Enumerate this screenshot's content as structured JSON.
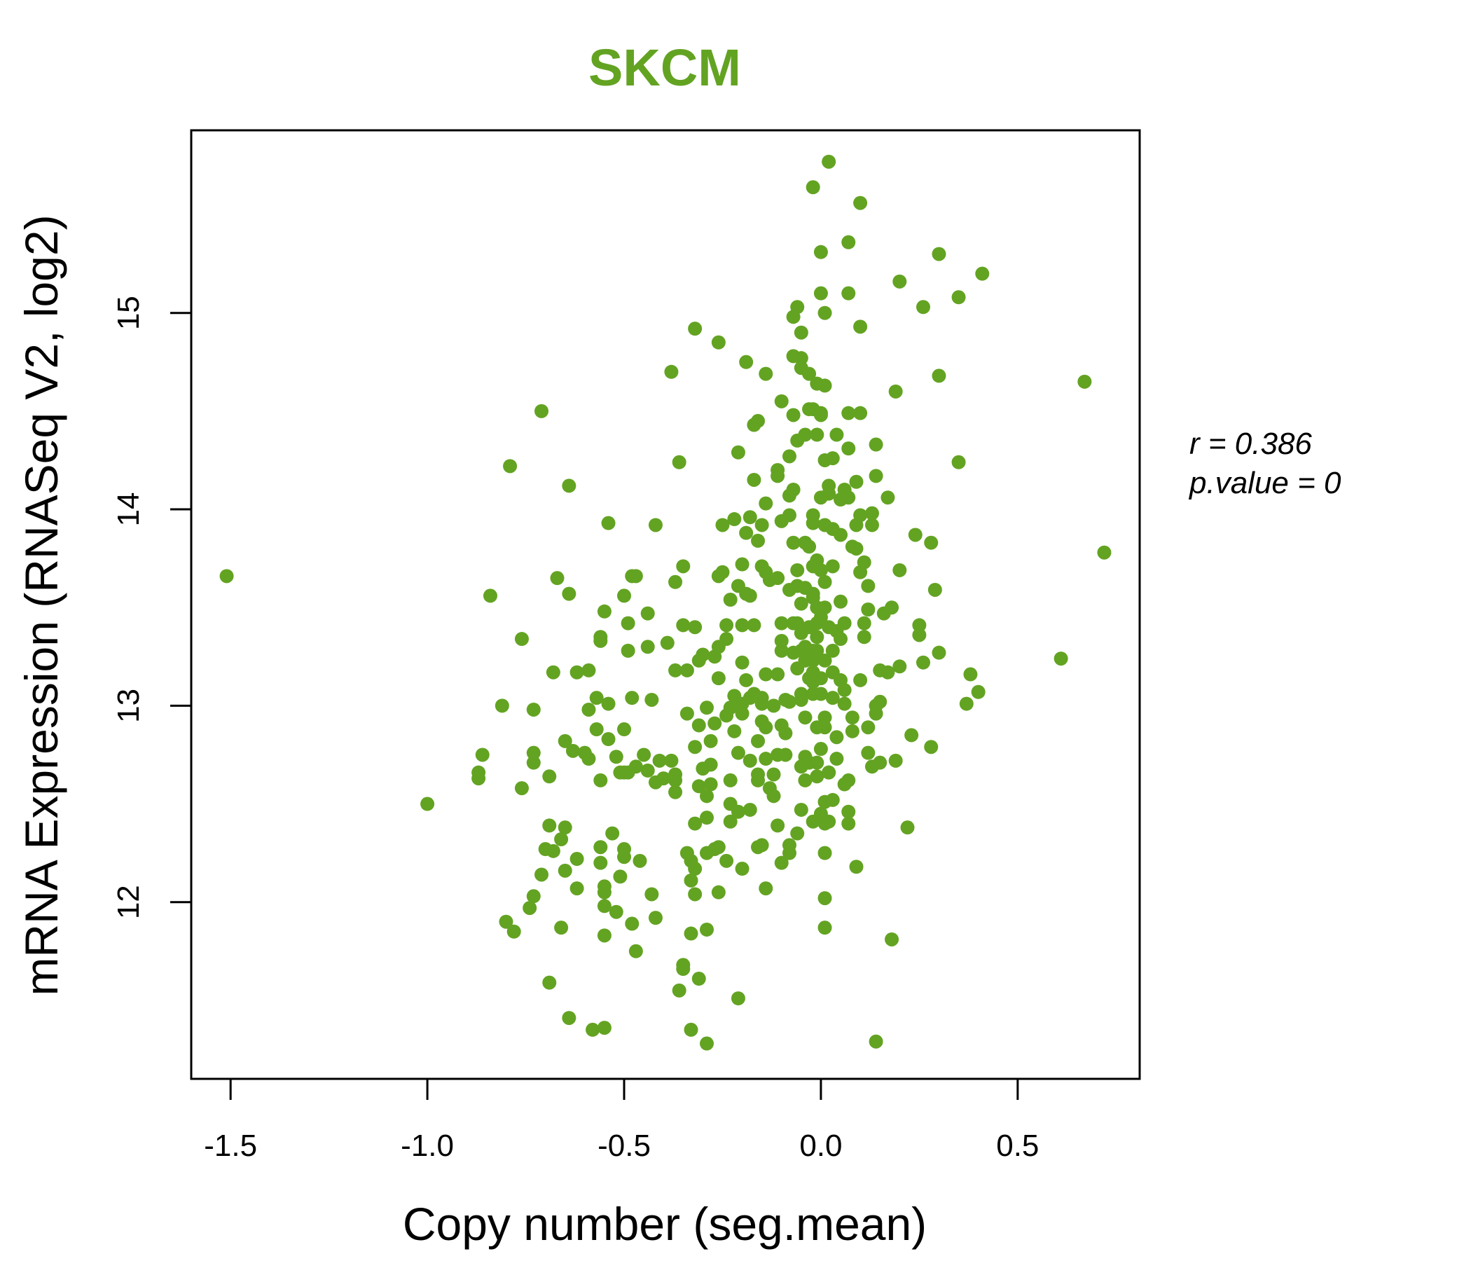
{
  "chart_data": {
    "type": "scatter",
    "title": "SKCM",
    "xlabel": "Copy number (seg.mean)",
    "ylabel": "mRNA Expression (RNASeq V2, log2)",
    "xlim": [
      -1.6,
      0.81
    ],
    "ylim": [
      11.1,
      15.93
    ],
    "xticks": [
      -1.5,
      -1.0,
      -0.5,
      0.0,
      0.5
    ],
    "xtick_labels": [
      "-1.5",
      "-1.0",
      "-0.5",
      "0.0",
      "0.5"
    ],
    "yticks": [
      12,
      13,
      14,
      15
    ],
    "ytick_labels": [
      "12",
      "13",
      "14",
      "15"
    ],
    "grid": false,
    "annotation": {
      "r": "r = 0.386",
      "p": "p.value = 0"
    },
    "colors": {
      "points": "#63a322",
      "title": "#63a322"
    },
    "points": [
      [
        -1.51,
        13.66
      ],
      [
        -1.0,
        12.5
      ],
      [
        -0.87,
        12.66
      ],
      [
        -0.87,
        12.63
      ],
      [
        -0.86,
        12.75
      ],
      [
        -0.84,
        13.56
      ],
      [
        -0.81,
        13.0
      ],
      [
        -0.79,
        14.22
      ],
      [
        -0.8,
        11.9
      ],
      [
        -0.78,
        11.85
      ],
      [
        -0.76,
        13.34
      ],
      [
        -0.76,
        12.58
      ],
      [
        -0.73,
        12.98
      ],
      [
        -0.73,
        12.76
      ],
      [
        -0.73,
        12.71
      ],
      [
        -0.74,
        11.97
      ],
      [
        -0.73,
        12.03
      ],
      [
        -0.71,
        14.5
      ],
      [
        -0.71,
        12.14
      ],
      [
        -0.7,
        12.27
      ],
      [
        -0.68,
        12.26
      ],
      [
        -0.69,
        12.64
      ],
      [
        -0.69,
        12.39
      ],
      [
        -0.68,
        13.17
      ],
      [
        -0.69,
        11.59
      ],
      [
        -0.67,
        13.65
      ],
      [
        -0.66,
        12.32
      ],
      [
        -0.65,
        12.38
      ],
      [
        -0.66,
        11.87
      ],
      [
        -0.65,
        12.82
      ],
      [
        -0.64,
        14.12
      ],
      [
        -0.64,
        13.57
      ],
      [
        -0.65,
        12.16
      ],
      [
        -0.64,
        11.41
      ],
      [
        -0.63,
        12.77
      ],
      [
        -0.62,
        12.22
      ],
      [
        -0.62,
        13.17
      ],
      [
        -0.62,
        12.07
      ],
      [
        -0.6,
        12.76
      ],
      [
        -0.59,
        12.73
      ],
      [
        -0.59,
        13.18
      ],
      [
        -0.59,
        12.98
      ],
      [
        -0.58,
        11.35
      ],
      [
        -0.57,
        13.04
      ],
      [
        -0.57,
        12.88
      ],
      [
        -0.56,
        13.33
      ],
      [
        -0.56,
        13.35
      ],
      [
        -0.56,
        12.28
      ],
      [
        -0.56,
        12.2
      ],
      [
        -0.56,
        12.62
      ],
      [
        -0.55,
        12.08
      ],
      [
        -0.55,
        11.98
      ],
      [
        -0.55,
        12.05
      ],
      [
        -0.55,
        11.36
      ],
      [
        -0.55,
        11.83
      ],
      [
        -0.55,
        13.48
      ],
      [
        -0.54,
        12.83
      ],
      [
        -0.54,
        13.93
      ],
      [
        -0.54,
        13.01
      ],
      [
        -0.53,
        12.35
      ],
      [
        -0.52,
        12.74
      ],
      [
        -0.52,
        11.95
      ],
      [
        -0.51,
        12.66
      ],
      [
        -0.5,
        12.66
      ],
      [
        -0.5,
        12.27
      ],
      [
        -0.5,
        12.23
      ],
      [
        -0.5,
        13.56
      ],
      [
        -0.51,
        12.13
      ],
      [
        -0.5,
        12.88
      ],
      [
        -0.49,
        13.42
      ],
      [
        -0.49,
        13.28
      ],
      [
        -0.49,
        12.66
      ],
      [
        -0.47,
        12.69
      ],
      [
        -0.48,
        11.89
      ],
      [
        -0.48,
        13.66
      ],
      [
        -0.47,
        13.66
      ],
      [
        -0.48,
        13.04
      ],
      [
        -0.47,
        11.75
      ],
      [
        -0.46,
        12.21
      ],
      [
        -0.45,
        12.75
      ],
      [
        -0.44,
        13.3
      ],
      [
        -0.44,
        13.47
      ],
      [
        -0.44,
        12.67
      ],
      [
        -0.43,
        13.03
      ],
      [
        -0.43,
        12.04
      ],
      [
        -0.42,
        12.61
      ],
      [
        -0.42,
        13.92
      ],
      [
        -0.42,
        11.92
      ],
      [
        -0.41,
        12.72
      ],
      [
        -0.4,
        12.63
      ],
      [
        -0.39,
        13.32
      ],
      [
        -0.38,
        14.7
      ],
      [
        -0.38,
        12.72
      ],
      [
        -0.37,
        12.65
      ],
      [
        -0.37,
        13.63
      ],
      [
        -0.37,
        13.18
      ],
      [
        -0.37,
        12.56
      ],
      [
        -0.37,
        12.62
      ],
      [
        -0.36,
        14.24
      ],
      [
        -0.36,
        11.55
      ],
      [
        -0.35,
        11.68
      ],
      [
        -0.35,
        11.66
      ],
      [
        -0.35,
        13.41
      ],
      [
        -0.35,
        13.71
      ],
      [
        -0.34,
        12.96
      ],
      [
        -0.34,
        13.18
      ],
      [
        -0.34,
        12.25
      ],
      [
        -0.33,
        12.21
      ],
      [
        -0.33,
        11.35
      ],
      [
        -0.33,
        11.84
      ],
      [
        -0.33,
        12.11
      ],
      [
        -0.32,
        12.17
      ],
      [
        -0.32,
        12.04
      ],
      [
        -0.32,
        12.79
      ],
      [
        -0.32,
        12.4
      ],
      [
        -0.32,
        14.92
      ],
      [
        -0.32,
        13.4
      ],
      [
        -0.31,
        13.23
      ],
      [
        -0.3,
        13.26
      ],
      [
        -0.31,
        12.59
      ],
      [
        -0.31,
        11.61
      ],
      [
        -0.31,
        12.9
      ],
      [
        -0.3,
        12.68
      ],
      [
        -0.29,
        12.54
      ],
      [
        -0.29,
        12.43
      ],
      [
        -0.29,
        11.86
      ],
      [
        -0.29,
        11.28
      ],
      [
        -0.29,
        12.25
      ],
      [
        -0.29,
        12.99
      ],
      [
        -0.28,
        12.7
      ],
      [
        -0.28,
        12.6
      ],
      [
        -0.28,
        12.82
      ],
      [
        -0.27,
        12.91
      ],
      [
        -0.27,
        13.25
      ],
      [
        -0.26,
        13.3
      ],
      [
        -0.27,
        12.27
      ],
      [
        -0.26,
        12.28
      ],
      [
        -0.26,
        13.14
      ],
      [
        -0.26,
        12.05
      ],
      [
        -0.26,
        13.66
      ],
      [
        -0.26,
        14.85
      ],
      [
        -0.25,
        13.92
      ],
      [
        -0.25,
        13.68
      ],
      [
        -0.24,
        13.41
      ],
      [
        -0.24,
        12.95
      ],
      [
        -0.24,
        12.21
      ],
      [
        -0.24,
        13.34
      ],
      [
        -0.23,
        12.62
      ],
      [
        -0.23,
        12.99
      ],
      [
        -0.22,
        13.05
      ],
      [
        -0.23,
        12.5
      ],
      [
        -0.23,
        12.41
      ],
      [
        -0.23,
        13.54
      ],
      [
        -0.22,
        13.95
      ],
      [
        -0.22,
        12.87
      ],
      [
        -0.21,
        12.46
      ],
      [
        -0.21,
        13.61
      ],
      [
        -0.21,
        14.29
      ],
      [
        -0.21,
        12.76
      ],
      [
        -0.21,
        11.51
      ],
      [
        -0.2,
        13.01
      ],
      [
        -0.2,
        12.96
      ],
      [
        -0.2,
        13.41
      ],
      [
        -0.2,
        13.22
      ],
      [
        -0.2,
        12.17
      ],
      [
        -0.2,
        13.72
      ],
      [
        -0.19,
        13.88
      ],
      [
        -0.19,
        13.57
      ],
      [
        -0.19,
        14.75
      ],
      [
        -0.19,
        13.13
      ],
      [
        -0.18,
        13.56
      ],
      [
        -0.18,
        12.72
      ],
      [
        -0.18,
        12.47
      ],
      [
        -0.18,
        13.04
      ],
      [
        -0.18,
        13.96
      ],
      [
        -0.17,
        14.15
      ],
      [
        -0.17,
        14.43
      ],
      [
        -0.17,
        13.06
      ],
      [
        -0.17,
        13.41
      ],
      [
        -0.16,
        12.62
      ],
      [
        -0.16,
        12.65
      ],
      [
        -0.16,
        12.82
      ],
      [
        -0.16,
        14.45
      ],
      [
        -0.16,
        12.28
      ],
      [
        -0.15,
        12.29
      ],
      [
        -0.16,
        13.84
      ],
      [
        -0.15,
        13.92
      ],
      [
        -0.15,
        13.71
      ],
      [
        -0.15,
        12.92
      ],
      [
        -0.14,
        12.89
      ],
      [
        -0.15,
        13.04
      ],
      [
        -0.15,
        13.01
      ],
      [
        -0.14,
        13.16
      ],
      [
        -0.14,
        12.73
      ],
      [
        -0.14,
        12.07
      ],
      [
        -0.14,
        14.03
      ],
      [
        -0.14,
        14.69
      ],
      [
        -0.14,
        13.68
      ],
      [
        -0.13,
        12.58
      ],
      [
        -0.12,
        12.54
      ],
      [
        -0.13,
        13.64
      ],
      [
        -0.12,
        13.0
      ],
      [
        -0.12,
        12.65
      ],
      [
        -0.11,
        14.17
      ],
      [
        -0.11,
        14.2
      ],
      [
        -0.11,
        12.75
      ],
      [
        -0.11,
        13.65
      ],
      [
        -0.11,
        12.39
      ],
      [
        -0.11,
        13.16
      ],
      [
        -0.1,
        12.9
      ],
      [
        -0.1,
        13.28
      ],
      [
        -0.1,
        13.33
      ],
      [
        -0.1,
        13.42
      ],
      [
        -0.1,
        12.2
      ],
      [
        -0.1,
        14.55
      ],
      [
        -0.1,
        13.94
      ],
      [
        -0.09,
        12.75
      ],
      [
        -0.09,
        12.86
      ],
      [
        -0.09,
        13.03
      ],
      [
        -0.08,
        12.29
      ],
      [
        -0.08,
        12.25
      ],
      [
        -0.08,
        13.97
      ],
      [
        -0.08,
        14.27
      ],
      [
        -0.08,
        14.07
      ],
      [
        -0.07,
        14.1
      ],
      [
        -0.08,
        13.59
      ],
      [
        -0.08,
        13.02
      ],
      [
        -0.07,
        13.42
      ],
      [
        -0.07,
        13.83
      ],
      [
        -0.07,
        14.78
      ],
      [
        -0.07,
        14.98
      ],
      [
        -0.07,
        13.27
      ],
      [
        -0.07,
        14.48
      ],
      [
        -0.06,
        14.35
      ],
      [
        -0.06,
        13.69
      ],
      [
        -0.06,
        13.61
      ],
      [
        -0.06,
        13.42
      ],
      [
        -0.06,
        15.03
      ],
      [
        -0.06,
        12.35
      ],
      [
        -0.06,
        13.19
      ],
      [
        -0.05,
        13.28
      ],
      [
        -0.05,
        12.47
      ],
      [
        -0.05,
        12.69
      ],
      [
        -0.05,
        14.77
      ],
      [
        -0.05,
        13.37
      ],
      [
        -0.05,
        13.52
      ],
      [
        -0.05,
        14.9
      ],
      [
        -0.05,
        13.06
      ],
      [
        -0.05,
        13.03
      ],
      [
        -0.05,
        14.72
      ],
      [
        -0.04,
        12.74
      ],
      [
        -0.04,
        14.38
      ],
      [
        -0.04,
        13.6
      ],
      [
        -0.04,
        13.83
      ],
      [
        -0.04,
        12.94
      ],
      [
        -0.04,
        13.3
      ],
      [
        -0.04,
        13.23
      ],
      [
        -0.04,
        12.62
      ],
      [
        -0.03,
        13.14
      ],
      [
        -0.03,
        14.69
      ],
      [
        -0.03,
        13.81
      ],
      [
        -0.03,
        13.4
      ],
      [
        -0.03,
        14.51
      ],
      [
        -0.02,
        14.51
      ],
      [
        -0.03,
        12.71
      ],
      [
        -0.02,
        13.97
      ],
      [
        -0.02,
        13.93
      ],
      [
        -0.02,
        13.55
      ],
      [
        -0.02,
        13.57
      ],
      [
        -0.02,
        13.28
      ],
      [
        -0.02,
        13.23
      ],
      [
        -0.02,
        13.17
      ],
      [
        -0.02,
        13.12
      ],
      [
        -0.02,
        13.06
      ],
      [
        -0.02,
        12.41
      ],
      [
        -0.02,
        13.71
      ],
      [
        -0.01,
        13.74
      ],
      [
        -0.01,
        14.38
      ],
      [
        -0.02,
        15.64
      ],
      [
        -0.01,
        14.64
      ],
      [
        -0.01,
        13.5
      ],
      [
        -0.01,
        13.42
      ],
      [
        -0.01,
        13.35
      ],
      [
        -0.01,
        13.28
      ],
      [
        -0.01,
        12.64
      ],
      [
        -0.01,
        12.71
      ],
      [
        -0.01,
        12.89
      ],
      [
        0.0,
        14.49
      ],
      [
        0.0,
        15.31
      ],
      [
        0.0,
        13.14
      ],
      [
        0.0,
        13.06
      ],
      [
        0.0,
        13.69
      ],
      [
        0.0,
        12.45
      ],
      [
        0.0,
        14.48
      ],
      [
        0.0,
        14.06
      ],
      [
        0.0,
        12.78
      ],
      [
        0.0,
        13.45
      ],
      [
        0.0,
        15.1
      ],
      [
        0.01,
        14.25
      ],
      [
        0.01,
        15.0
      ],
      [
        0.01,
        14.63
      ],
      [
        0.01,
        13.23
      ],
      [
        0.01,
        13.5
      ],
      [
        0.01,
        13.63
      ],
      [
        0.01,
        12.94
      ],
      [
        0.01,
        12.89
      ],
      [
        0.01,
        12.51
      ],
      [
        0.01,
        12.25
      ],
      [
        0.01,
        12.02
      ],
      [
        0.01,
        11.87
      ],
      [
        0.01,
        13.92
      ],
      [
        0.02,
        12.66
      ],
      [
        0.02,
        12.66
      ],
      [
        0.02,
        12.41
      ],
      [
        0.01,
        12.4
      ],
      [
        0.02,
        15.77
      ],
      [
        0.02,
        14.12
      ],
      [
        0.02,
        14.08
      ],
      [
        0.02,
        13.4
      ],
      [
        0.03,
        13.71
      ],
      [
        0.03,
        13.9
      ],
      [
        0.03,
        14.26
      ],
      [
        0.03,
        13.04
      ],
      [
        0.03,
        12.52
      ],
      [
        0.03,
        13.28
      ],
      [
        0.03,
        13.17
      ],
      [
        0.04,
        14.38
      ],
      [
        0.04,
        12.84
      ],
      [
        0.04,
        12.73
      ],
      [
        0.04,
        13.38
      ],
      [
        0.05,
        14.05
      ],
      [
        0.05,
        13.87
      ],
      [
        0.05,
        13.13
      ],
      [
        0.05,
        13.53
      ],
      [
        0.05,
        13.34
      ],
      [
        0.06,
        12.6
      ],
      [
        0.06,
        14.1
      ],
      [
        0.07,
        14.06
      ],
      [
        0.06,
        13.42
      ],
      [
        0.06,
        13.08
      ],
      [
        0.06,
        13.01
      ],
      [
        0.07,
        15.36
      ],
      [
        0.07,
        15.1
      ],
      [
        0.07,
        14.31
      ],
      [
        0.07,
        12.62
      ],
      [
        0.07,
        12.46
      ],
      [
        0.07,
        12.4
      ],
      [
        0.07,
        14.49
      ],
      [
        0.08,
        13.81
      ],
      [
        0.08,
        12.94
      ],
      [
        0.08,
        12.87
      ],
      [
        0.09,
        12.18
      ],
      [
        0.09,
        13.92
      ],
      [
        0.09,
        14.14
      ],
      [
        0.09,
        13.8
      ],
      [
        0.1,
        14.49
      ],
      [
        0.1,
        14.93
      ],
      [
        0.1,
        13.97
      ],
      [
        0.1,
        15.56
      ],
      [
        0.1,
        13.13
      ],
      [
        0.1,
        13.68
      ],
      [
        0.11,
        13.42
      ],
      [
        0.11,
        13.35
      ],
      [
        0.11,
        13.73
      ],
      [
        0.12,
        13.61
      ],
      [
        0.12,
        12.89
      ],
      [
        0.12,
        12.76
      ],
      [
        0.12,
        13.49
      ],
      [
        0.13,
        13.98
      ],
      [
        0.13,
        13.92
      ],
      [
        0.13,
        12.69
      ],
      [
        0.14,
        12.96
      ],
      [
        0.14,
        13.0
      ],
      [
        0.14,
        14.33
      ],
      [
        0.14,
        11.29
      ],
      [
        0.14,
        14.17
      ],
      [
        0.15,
        13.02
      ],
      [
        0.15,
        13.18
      ],
      [
        0.15,
        12.71
      ],
      [
        0.16,
        13.47
      ],
      [
        0.17,
        13.17
      ],
      [
        0.17,
        14.06
      ],
      [
        0.18,
        11.81
      ],
      [
        0.18,
        13.5
      ],
      [
        0.19,
        12.72
      ],
      [
        0.19,
        14.6
      ],
      [
        0.2,
        13.2
      ],
      [
        0.2,
        15.16
      ],
      [
        0.2,
        13.69
      ],
      [
        0.22,
        12.38
      ],
      [
        0.23,
        12.85
      ],
      [
        0.24,
        13.87
      ],
      [
        0.25,
        13.41
      ],
      [
        0.25,
        13.36
      ],
      [
        0.26,
        15.03
      ],
      [
        0.26,
        13.22
      ],
      [
        0.28,
        13.83
      ],
      [
        0.28,
        12.79
      ],
      [
        0.29,
        13.59
      ],
      [
        0.3,
        15.3
      ],
      [
        0.3,
        13.27
      ],
      [
        0.3,
        14.68
      ],
      [
        0.35,
        15.08
      ],
      [
        0.35,
        14.24
      ],
      [
        0.37,
        13.01
      ],
      [
        0.38,
        13.16
      ],
      [
        0.4,
        13.07
      ],
      [
        0.41,
        15.2
      ],
      [
        0.61,
        13.24
      ],
      [
        0.67,
        14.65
      ],
      [
        0.72,
        13.78
      ]
    ]
  }
}
